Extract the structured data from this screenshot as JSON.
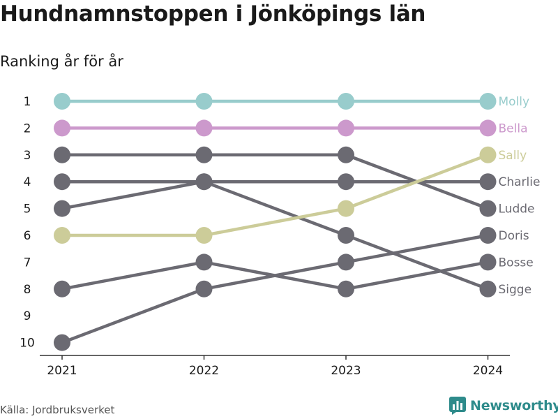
{
  "title": "Hundnamnstoppen i Jönköpings län",
  "subtitle": "Ranking år för år",
  "source": "Källa: Jordbruksverket",
  "brand": {
    "name": "Newsworthy",
    "icon": "bar-chart-logo-icon",
    "color": "#2e8b8b"
  },
  "chart_data": {
    "type": "line",
    "x": [
      "2021",
      "2022",
      "2023",
      "2024"
    ],
    "y_ticks": [
      "1",
      "2",
      "3",
      "4",
      "5",
      "6",
      "7",
      "8",
      "9",
      "10"
    ],
    "ylim": [
      10,
      1
    ],
    "grid": false,
    "legend": "end-labels-right",
    "series": [
      {
        "name": "Molly",
        "values": [
          1,
          1,
          1,
          1
        ],
        "color": "#98cccc"
      },
      {
        "name": "Bella",
        "values": [
          2,
          2,
          2,
          2
        ],
        "color": "#cc99cc"
      },
      {
        "name": "Sally",
        "values": [
          6,
          6,
          5,
          3
        ],
        "color": "#cccc99"
      },
      {
        "name": "Charlie",
        "values": [
          4,
          4,
          4,
          4
        ],
        "color": "#6b6a72"
      },
      {
        "name": "Ludde",
        "values": [
          3,
          3,
          3,
          5
        ],
        "color": "#6b6a72"
      },
      {
        "name": "Doris",
        "values": [
          10,
          8,
          7,
          6
        ],
        "color": "#6b6a72"
      },
      {
        "name": "Bosse",
        "values": [
          8,
          7,
          8,
          7
        ],
        "color": "#6b6a72"
      },
      {
        "name": "Sigge",
        "values": [
          5,
          4,
          6,
          8
        ],
        "color": "#6b6a72"
      }
    ]
  }
}
